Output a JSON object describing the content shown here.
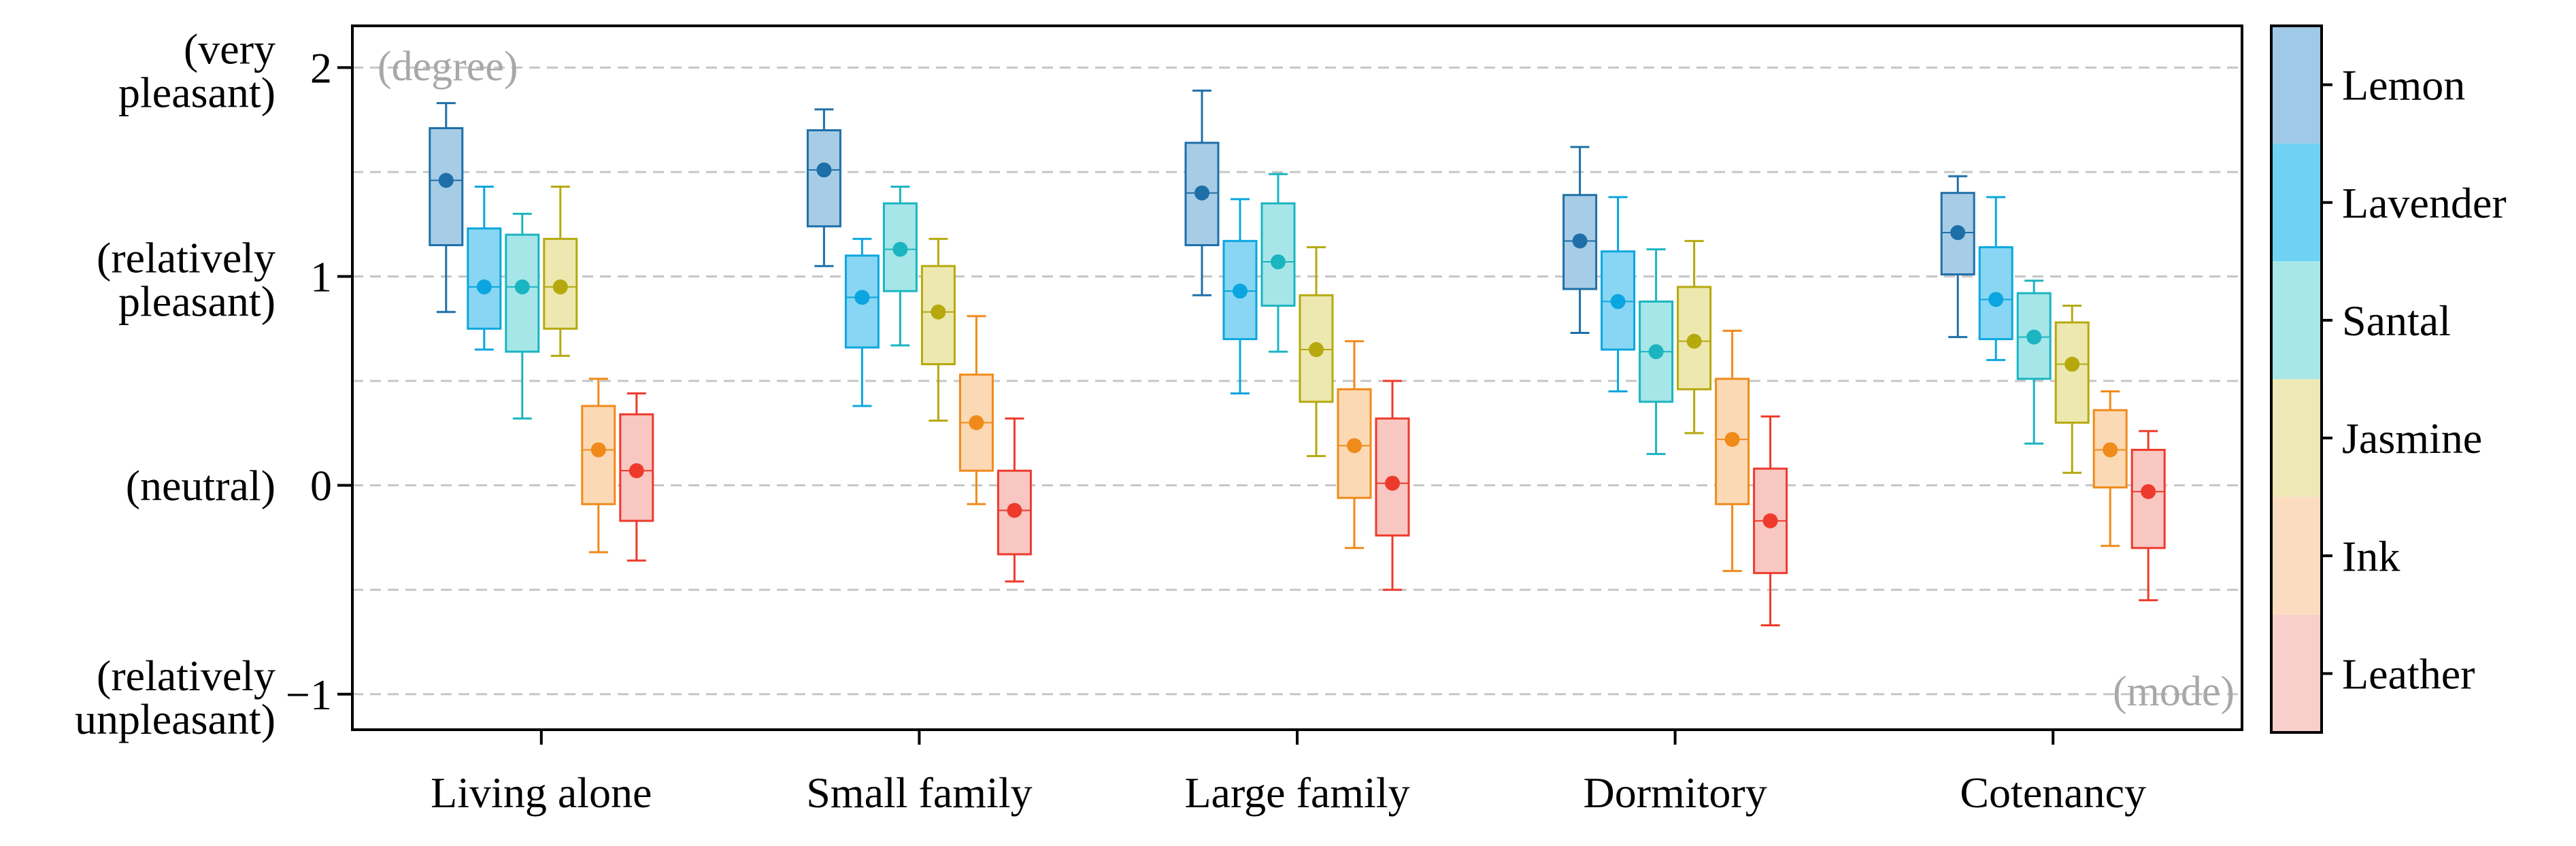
{
  "chart_data": {
    "type": "boxplot",
    "categories": [
      "Living alone",
      "Small family",
      "Large family",
      "Dormitory",
      "Cotenancy"
    ],
    "ylim": [
      -1.17,
      2.2
    ],
    "yticks": [
      {
        "value": 2,
        "tick": "2",
        "label": [
          "(very",
          "pleasant)"
        ]
      },
      {
        "value": 1,
        "tick": "1",
        "label": [
          "(relatively",
          "pleasant)"
        ]
      },
      {
        "value": 0,
        "tick": "0",
        "label": [
          "(neutral)"
        ]
      },
      {
        "value": -1,
        "tick": "−1",
        "label": [
          "(relatively",
          "unpleasant)"
        ]
      }
    ],
    "gridlines": [
      2,
      1.5,
      1,
      0.5,
      0,
      -0.5,
      -1
    ],
    "annotations": {
      "top_left": "(degree)",
      "bottom_right": "(mode)"
    },
    "legend_position": "right",
    "series": [
      {
        "name": "Lemon",
        "color": "#1E6FA8",
        "fill": "#A7CCE6",
        "legend_fill": "#9FC9E6",
        "boxes": [
          {
            "whisker_low": 0.83,
            "q1": 1.15,
            "median": 1.46,
            "q3": 1.71,
            "whisker_high": 1.83,
            "mode": 1.46
          },
          {
            "whisker_low": 1.05,
            "q1": 1.24,
            "median": 1.51,
            "q3": 1.7,
            "whisker_high": 1.8,
            "mode": 1.51
          },
          {
            "whisker_low": 0.91,
            "q1": 1.15,
            "median": 1.4,
            "q3": 1.64,
            "whisker_high": 1.89,
            "mode": 1.4
          },
          {
            "whisker_low": 0.73,
            "q1": 0.94,
            "median": 1.17,
            "q3": 1.39,
            "whisker_high": 1.62,
            "mode": 1.17
          },
          {
            "whisker_low": 0.71,
            "q1": 1.01,
            "median": 1.21,
            "q3": 1.4,
            "whisker_high": 1.48,
            "mode": 1.21
          }
        ]
      },
      {
        "name": "Lavender",
        "color": "#0BA6DF",
        "fill": "#88D6F3",
        "legend_fill": "#6FD2F4",
        "boxes": [
          {
            "whisker_low": 0.65,
            "q1": 0.75,
            "median": 0.95,
            "q3": 1.23,
            "whisker_high": 1.43,
            "mode": 0.95
          },
          {
            "whisker_low": 0.38,
            "q1": 0.66,
            "median": 0.9,
            "q3": 1.1,
            "whisker_high": 1.18,
            "mode": 0.9
          },
          {
            "whisker_low": 0.44,
            "q1": 0.7,
            "median": 0.93,
            "q3": 1.17,
            "whisker_high": 1.37,
            "mode": 0.93
          },
          {
            "whisker_low": 0.45,
            "q1": 0.65,
            "median": 0.88,
            "q3": 1.12,
            "whisker_high": 1.38,
            "mode": 0.88
          },
          {
            "whisker_low": 0.6,
            "q1": 0.7,
            "median": 0.89,
            "q3": 1.14,
            "whisker_high": 1.38,
            "mode": 0.89
          }
        ]
      },
      {
        "name": "Santal",
        "color": "#1AB5C0",
        "fill": "#A6E6E8",
        "legend_fill": "#A8E7E8",
        "boxes": [
          {
            "whisker_low": 0.32,
            "q1": 0.64,
            "median": 0.95,
            "q3": 1.2,
            "whisker_high": 1.3,
            "mode": 0.95
          },
          {
            "whisker_low": 0.67,
            "q1": 0.93,
            "median": 1.13,
            "q3": 1.35,
            "whisker_high": 1.43,
            "mode": 1.13
          },
          {
            "whisker_low": 0.64,
            "q1": 0.86,
            "median": 1.07,
            "q3": 1.35,
            "whisker_high": 1.49,
            "mode": 1.07
          },
          {
            "whisker_low": 0.15,
            "q1": 0.4,
            "median": 0.64,
            "q3": 0.88,
            "whisker_high": 1.13,
            "mode": 0.64
          },
          {
            "whisker_low": 0.2,
            "q1": 0.51,
            "median": 0.71,
            "q3": 0.92,
            "whisker_high": 0.98,
            "mode": 0.71
          }
        ]
      },
      {
        "name": "Jasmine",
        "color": "#B5A90E",
        "fill": "#EDE8B0",
        "legend_fill": "#EEE8B6",
        "boxes": [
          {
            "whisker_low": 0.62,
            "q1": 0.75,
            "median": 0.95,
            "q3": 1.18,
            "whisker_high": 1.43,
            "mode": 0.95
          },
          {
            "whisker_low": 0.31,
            "q1": 0.58,
            "median": 0.83,
            "q3": 1.05,
            "whisker_high": 1.18,
            "mode": 0.83
          },
          {
            "whisker_low": 0.14,
            "q1": 0.4,
            "median": 0.65,
            "q3": 0.91,
            "whisker_high": 1.14,
            "mode": 0.65
          },
          {
            "whisker_low": 0.25,
            "q1": 0.46,
            "median": 0.69,
            "q3": 0.95,
            "whisker_high": 1.17,
            "mode": 0.69
          },
          {
            "whisker_low": 0.06,
            "q1": 0.3,
            "median": 0.58,
            "q3": 0.78,
            "whisker_high": 0.86,
            "mode": 0.58
          }
        ]
      },
      {
        "name": "Ink",
        "color": "#F08A1A",
        "fill": "#FBD9B5",
        "legend_fill": "#FCDCC0",
        "boxes": [
          {
            "whisker_low": -0.32,
            "q1": -0.09,
            "median": 0.17,
            "q3": 0.38,
            "whisker_high": 0.51,
            "mode": 0.17
          },
          {
            "whisker_low": -0.09,
            "q1": 0.07,
            "median": 0.3,
            "q3": 0.53,
            "whisker_high": 0.81,
            "mode": 0.3
          },
          {
            "whisker_low": -0.3,
            "q1": -0.06,
            "median": 0.19,
            "q3": 0.46,
            "whisker_high": 0.69,
            "mode": 0.19
          },
          {
            "whisker_low": -0.41,
            "q1": -0.09,
            "median": 0.22,
            "q3": 0.51,
            "whisker_high": 0.74,
            "mode": 0.22
          },
          {
            "whisker_low": -0.29,
            "q1": -0.01,
            "median": 0.17,
            "q3": 0.36,
            "whisker_high": 0.45,
            "mode": 0.17
          }
        ]
      },
      {
        "name": "Leather",
        "color": "#EE3A2C",
        "fill": "#F8C7C2",
        "legend_fill": "#F9CFCB",
        "boxes": [
          {
            "whisker_low": -0.36,
            "q1": -0.17,
            "median": 0.07,
            "q3": 0.34,
            "whisker_high": 0.44,
            "mode": 0.07
          },
          {
            "whisker_low": -0.46,
            "q1": -0.33,
            "median": -0.12,
            "q3": 0.07,
            "whisker_high": 0.32,
            "mode": -0.12
          },
          {
            "whisker_low": -0.5,
            "q1": -0.24,
            "median": 0.01,
            "q3": 0.32,
            "whisker_high": 0.5,
            "mode": 0.01
          },
          {
            "whisker_low": -0.67,
            "q1": -0.42,
            "median": -0.17,
            "q3": 0.08,
            "whisker_high": 0.33,
            "mode": -0.17
          },
          {
            "whisker_low": -0.55,
            "q1": -0.3,
            "median": -0.03,
            "q3": 0.17,
            "whisker_high": 0.26,
            "mode": -0.03
          }
        ]
      }
    ]
  }
}
